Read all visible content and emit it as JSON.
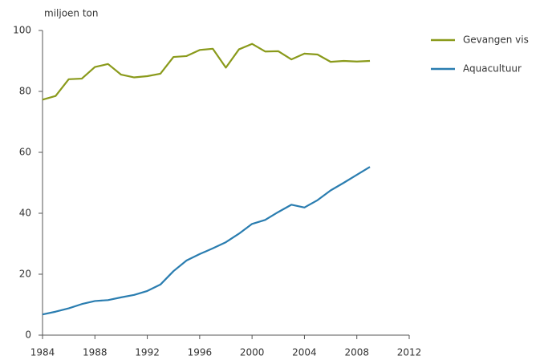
{
  "chart_data": {
    "type": "line",
    "y_label": "miljoen ton",
    "x": [
      1984,
      1985,
      1986,
      1987,
      1988,
      1989,
      1990,
      1991,
      1992,
      1993,
      1994,
      1995,
      1996,
      1997,
      1998,
      1999,
      2000,
      2001,
      2002,
      2003,
      2004,
      2005,
      2006,
      2007,
      2008,
      2009
    ],
    "series": [
      {
        "name": "Gevangen vis",
        "color": "#8a9a1b",
        "values": [
          77.3,
          78.5,
          84,
          84.2,
          88,
          89,
          85.5,
          84.6,
          85,
          85.8,
          91.3,
          91.6,
          93.6,
          94,
          87.8,
          93.8,
          95.6,
          93.1,
          93.2,
          90.5,
          92.4,
          92.1,
          89.7,
          90,
          89.8,
          90
        ]
      },
      {
        "name": "Aquacultuur",
        "color": "#2a7db0",
        "values": [
          6.8,
          7.7,
          8.8,
          10.2,
          11.2,
          11.5,
          12.4,
          13.2,
          14.5,
          16.6,
          21,
          24.5,
          26.6,
          28.5,
          30.5,
          33.3,
          36.5,
          37.8,
          40.4,
          42.8,
          41.9,
          44.3,
          47.5,
          50,
          52.6,
          55.2
        ]
      }
    ],
    "xlim": [
      1984,
      2012
    ],
    "xticks": [
      1984,
      1988,
      1992,
      1996,
      2000,
      2004,
      2008,
      2012
    ],
    "ylim": [
      0,
      100
    ],
    "yticks": [
      0,
      20,
      40,
      60,
      80,
      100
    ],
    "grid": false,
    "legend": "right"
  }
}
